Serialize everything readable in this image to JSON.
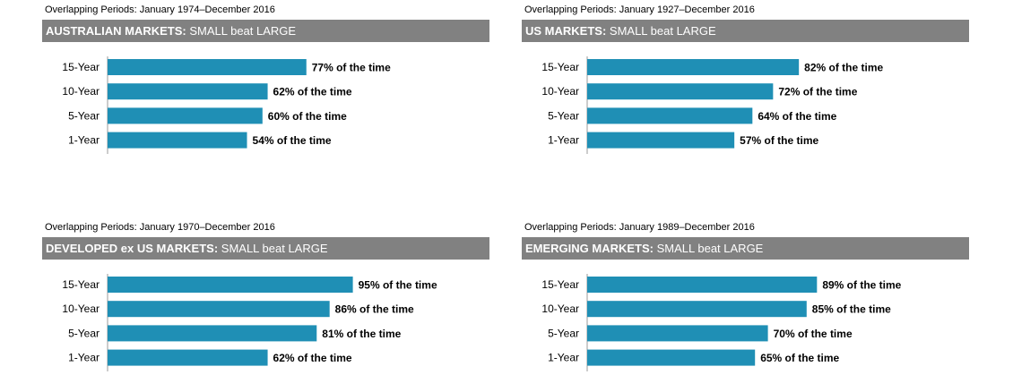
{
  "colors": {
    "bar": "#1f8fb5",
    "header_bg": "#818181",
    "axis": "#9a9a9a"
  },
  "chart_data": [
    {
      "type": "bar",
      "orientation": "horizontal",
      "period": "Overlapping Periods: January 1974–December 2016",
      "title_bold": "AUSTRALIAN MARKETS:",
      "title_rest": " SMALL beat LARGE",
      "categories": [
        "15-Year",
        "10-Year",
        "5-Year",
        "1-Year"
      ],
      "values": [
        77,
        62,
        60,
        54
      ],
      "labels": [
        "77% of the time",
        "62% of the time",
        "60% of the time",
        "54% of the time"
      ],
      "xlim": [
        0,
        100
      ]
    },
    {
      "type": "bar",
      "orientation": "horizontal",
      "period": "Overlapping Periods: January 1927–December 2016",
      "title_bold": "US MARKETS:",
      "title_rest": " SMALL beat LARGE",
      "categories": [
        "15-Year",
        "10-Year",
        "5-Year",
        "1-Year"
      ],
      "values": [
        82,
        72,
        64,
        57
      ],
      "labels": [
        "82% of the time",
        "72% of the time",
        "64% of the time",
        "57% of the time"
      ],
      "xlim": [
        0,
        100
      ]
    },
    {
      "type": "bar",
      "orientation": "horizontal",
      "period": "Overlapping Periods: January 1970–December 2016",
      "title_bold": "DEVELOPED ex US MARKETS:",
      "title_rest": " SMALL beat LARGE",
      "categories": [
        "15-Year",
        "10-Year",
        "5-Year",
        "1-Year"
      ],
      "values": [
        95,
        86,
        81,
        62
      ],
      "labels": [
        "95% of the time",
        "86% of the time",
        "81% of the time",
        "62% of the time"
      ],
      "xlim": [
        0,
        100
      ]
    },
    {
      "type": "bar",
      "orientation": "horizontal",
      "period": "Overlapping Periods: January 1989–December 2016",
      "title_bold": "EMERGING MARKETS:",
      "title_rest": " SMALL beat LARGE",
      "categories": [
        "15-Year",
        "10-Year",
        "5-Year",
        "1-Year"
      ],
      "values": [
        89,
        85,
        70,
        65
      ],
      "labels": [
        "89% of the time",
        "85% of the time",
        "70% of the time",
        "65% of the time"
      ],
      "xlim": [
        0,
        100
      ]
    }
  ]
}
